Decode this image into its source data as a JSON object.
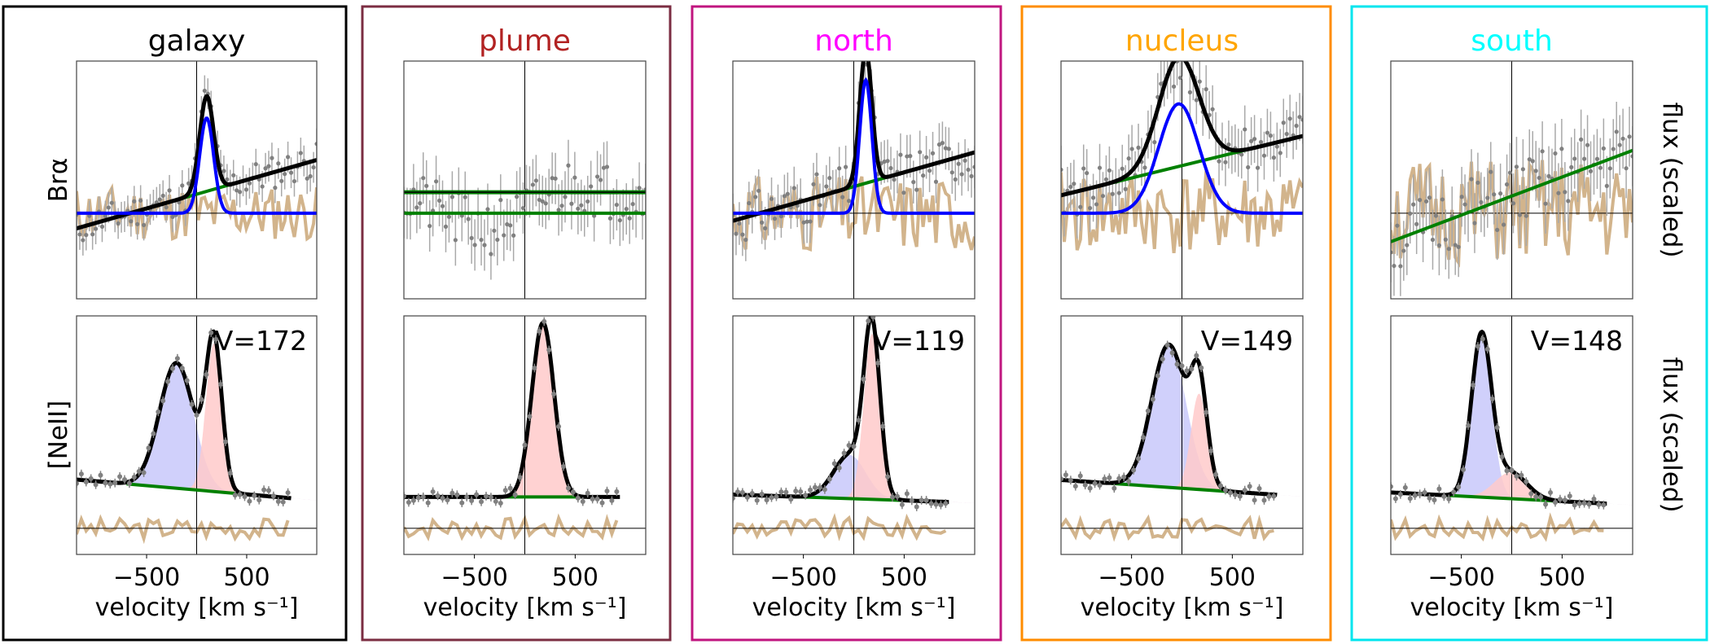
{
  "figure": {
    "row_labels": [
      "Brα",
      "[NeII]"
    ],
    "right_ylabel": "flux (scaled)",
    "colors": {
      "data_points": "#808080",
      "total_fit": "#000000",
      "bra_component": "#0000ff",
      "continuum": "#008000",
      "residual": "#d2b48c",
      "blue_component_fill": "#c8c8fa",
      "red_component_fill": "#ffcaca"
    }
  },
  "chart_data": [
    {
      "type": "line",
      "panel": "galaxy",
      "title": "galaxy",
      "title_color": "#000000",
      "frame_color": "#000000",
      "xlabel": "velocity [km s⁻¹]",
      "xlim": [
        -1200,
        1200
      ],
      "xticks": [
        -500,
        500
      ],
      "xtick_labels": [
        "−500",
        "500"
      ],
      "bra": {
        "continuum": {
          "slope": 0.3,
          "intercept": 0.2
        },
        "components": [
          {
            "center": 100,
            "sigma": 70,
            "amp": 1.0
          }
        ],
        "noise_seed": 11,
        "noise_level": 0.18,
        "show_fit": true
      },
      "neii": {
        "annotation": "V=172",
        "continuum": {
          "slope": -0.05,
          "intercept": 0.12
        },
        "blue": {
          "center": -200,
          "sigma": 170,
          "amp": 0.72
        },
        "red": {
          "center": 172,
          "sigma": 80,
          "amp": 0.85
        },
        "data_range": [
          -1200,
          950
        ],
        "noise_seed": 3
      }
    },
    {
      "type": "line",
      "panel": "plume",
      "title": "plume",
      "title_color": "#b22222",
      "frame_color": "#7b2d42",
      "xlabel": "velocity [km s⁻¹]",
      "xlim": [
        -1200,
        1200
      ],
      "xticks": [
        -500,
        500
      ],
      "xtick_labels": [
        "−500",
        "500"
      ],
      "bra": {
        "continuum": {
          "slope": 0.0,
          "intercept": 0.0
        },
        "components": [],
        "noise_seed": 21,
        "noise_level": 0.3,
        "show_fit": false,
        "flat_fit": true
      },
      "neii": {
        "annotation": "",
        "continuum": {
          "slope": 0.0,
          "intercept": 0.08
        },
        "blue": null,
        "red": {
          "center": 180,
          "sigma": 110,
          "amp": 1.0
        },
        "data_range": [
          -1200,
          950
        ],
        "noise_seed": 7
      }
    },
    {
      "type": "line",
      "panel": "north",
      "title": "north",
      "title_color": "#ff00ff",
      "frame_color": "#c0157f",
      "xlabel": "velocity [km s⁻¹]",
      "xlim": [
        -1200,
        1200
      ],
      "xticks": [
        -500,
        500
      ],
      "xtick_labels": [
        "−500",
        "500"
      ],
      "bra": {
        "continuum": {
          "slope": 0.3,
          "intercept": 0.28
        },
        "components": [
          {
            "center": 119,
            "sigma": 60,
            "amp": 1.4
          }
        ],
        "noise_seed": 31,
        "noise_level": 0.25,
        "show_fit": true
      },
      "neii": {
        "annotation": "V=119",
        "continuum": {
          "slope": -0.02,
          "intercept": 0.07
        },
        "blue": {
          "center": -40,
          "sigma": 160,
          "amp": 0.25
        },
        "red": {
          "center": 180,
          "sigma": 80,
          "amp": 0.95
        },
        "data_range": [
          -1200,
          950
        ],
        "noise_seed": 9
      }
    },
    {
      "type": "line",
      "panel": "nucleus",
      "title": "nucleus",
      "title_color": "#ffa500",
      "frame_color": "#ff8c00",
      "xlabel": "velocity [km s⁻¹]",
      "xlim": [
        -1200,
        1200
      ],
      "xticks": [
        -500,
        500
      ],
      "xtick_labels": [
        "−500",
        "500"
      ],
      "bra": {
        "continuum": {
          "slope": 0.26,
          "intercept": 0.5
        },
        "components": [
          {
            "center": -30,
            "sigma": 200,
            "amp": 1.15
          }
        ],
        "noise_seed": 41,
        "noise_level": 0.28,
        "show_fit": true
      },
      "neii": {
        "annotation": "V=149",
        "continuum": {
          "slope": -0.04,
          "intercept": 0.13
        },
        "blue": {
          "center": -130,
          "sigma": 170,
          "amp": 0.82
        },
        "red": {
          "center": 170,
          "sigma": 80,
          "amp": 0.55
        },
        "data_range": [
          -1200,
          950
        ],
        "noise_seed": 13
      }
    },
    {
      "type": "line",
      "panel": "south",
      "title": "south",
      "title_color": "#00ffff",
      "frame_color": "#00e5ee",
      "xlabel": "velocity [km s⁻¹]",
      "xlim": [
        -1200,
        1200
      ],
      "xticks": [
        -500,
        500
      ],
      "xtick_labels": [
        "−500",
        "500"
      ],
      "bra": {
        "continuum": {
          "slope": 0.4,
          "intercept": 0.18
        },
        "components": [],
        "noise_seed": 51,
        "noise_level": 0.35,
        "show_fit": false,
        "flat_fit": false
      },
      "neii": {
        "annotation": "V=148",
        "continuum": {
          "slope": -0.03,
          "intercept": 0.07
        },
        "blue": {
          "center": -300,
          "sigma": 100,
          "amp": 0.92
        },
        "red": {
          "center": -10,
          "sigma": 160,
          "amp": 0.15
        },
        "data_range": [
          -1200,
          950
        ],
        "noise_seed": 17
      }
    }
  ]
}
